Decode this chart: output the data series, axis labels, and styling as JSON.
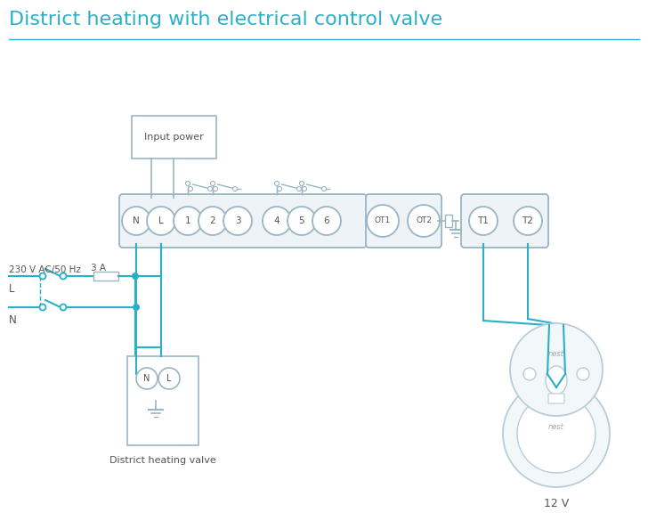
{
  "title": "District heating with electrical control valve",
  "title_color": "#29b0c8",
  "title_fontsize": 16,
  "bg_color": "#ffffff",
  "line_color": "#29b0c8",
  "box_color": "#9ab5c5",
  "text_color": "#555555",
  "terminal_labels": [
    "N",
    "L",
    "1",
    "2",
    "3",
    "4",
    "5",
    "6"
  ],
  "terminal2_labels": [
    "OT1",
    "OT2"
  ],
  "terminal3_labels": [
    "T1",
    "T2"
  ],
  "input_power_label": "Input power",
  "valve_label": "District heating valve",
  "nest_label": "12 V",
  "voltage_label": "230 V AC/50 Hz",
  "fuse_label": "3 A",
  "L_label": "L",
  "N_label": "N"
}
